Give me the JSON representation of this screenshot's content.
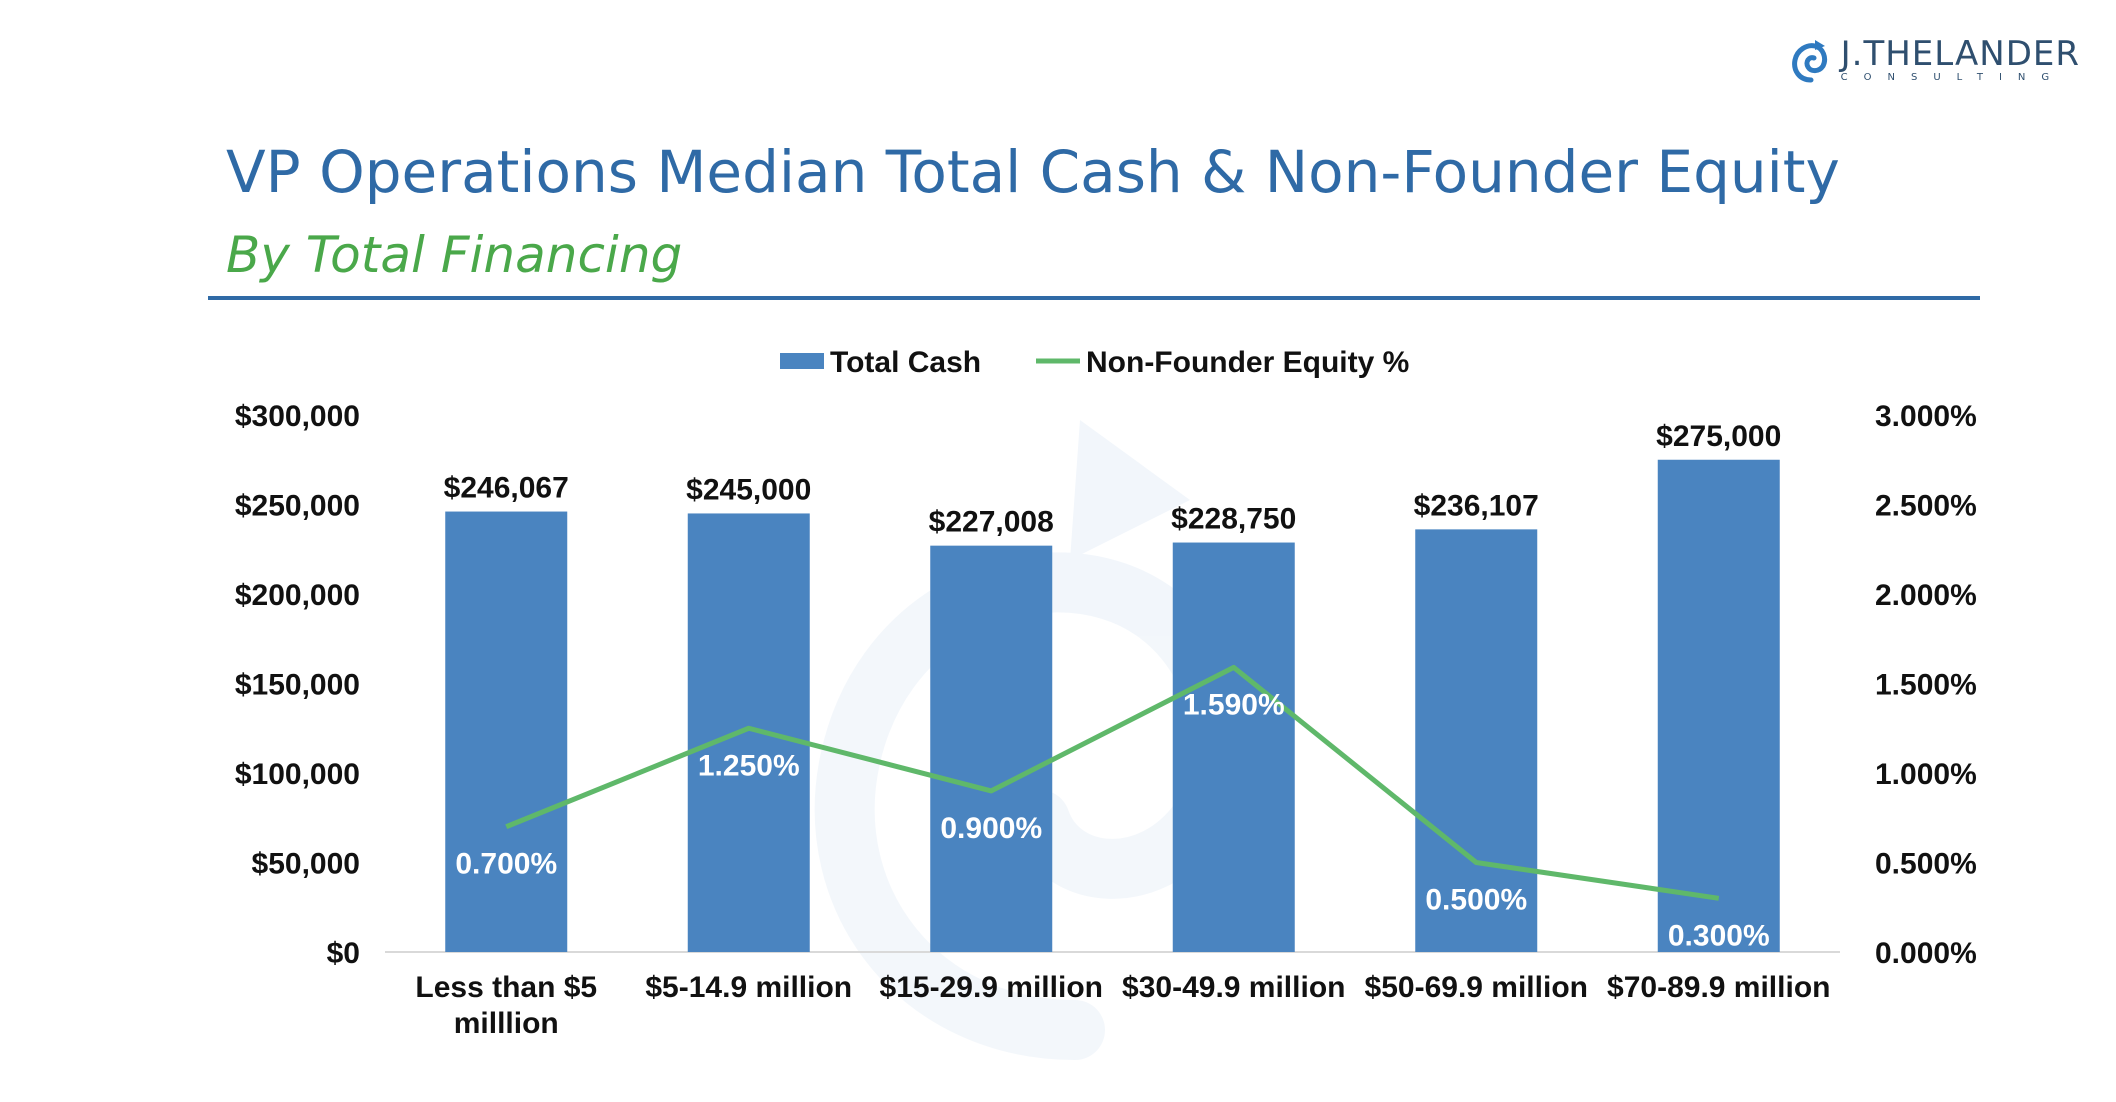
{
  "logo": {
    "name": "J.THELANDER",
    "sub": "CONSULTING",
    "color": "#2f4f6f"
  },
  "header": {
    "title": "VP Operations Median Total Cash & Non-Founder Equity",
    "subtitle": "By Total Financing"
  },
  "chart_data": {
    "type": "bar",
    "categories": [
      [
        "Less than $5",
        "milllion"
      ],
      [
        "$5-14.9 million"
      ],
      [
        "$15-29.9 million"
      ],
      [
        "$30-49.9 million"
      ],
      [
        "$50-69.9 million"
      ],
      [
        "$70-89.9 million"
      ]
    ],
    "series": [
      {
        "name": "Total Cash",
        "type": "bar",
        "axis": "left",
        "color": "#4a84c0",
        "values": [
          246067,
          245000,
          227008,
          228750,
          236107,
          275000
        ],
        "labels": [
          "$246,067",
          "$245,000",
          "$227,008",
          "$228,750",
          "$236,107",
          "$275,000"
        ]
      },
      {
        "name": "Non-Founder Equity %",
        "type": "line",
        "axis": "right",
        "color": "#5fb86a",
        "values": [
          0.7,
          1.25,
          0.9,
          1.59,
          0.5,
          0.3
        ],
        "labels": [
          "0.700%",
          "1.250%",
          "0.900%",
          "1.590%",
          "0.500%",
          "0.300%"
        ]
      }
    ],
    "y_left": {
      "ylim": [
        0,
        300000
      ],
      "ticks": [
        "$0",
        "$50,000",
        "$100,000",
        "$150,000",
        "$200,000",
        "$250,000",
        "$300,000"
      ]
    },
    "y_right": {
      "ylim": [
        0,
        3
      ],
      "ticks": [
        "0.000%",
        "0.500%",
        "1.000%",
        "1.500%",
        "2.000%",
        "2.500%",
        "3.000%"
      ]
    },
    "legend": "top-center",
    "grid": false
  }
}
